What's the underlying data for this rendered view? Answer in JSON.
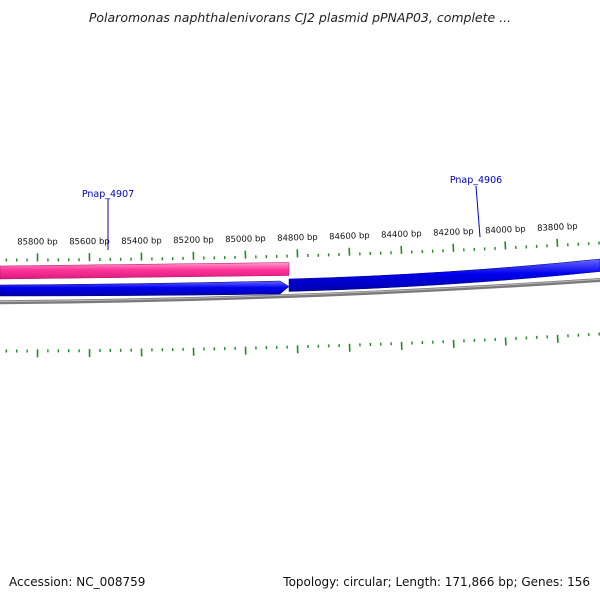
{
  "title": "Polaromonas naphthalenivorans CJ2 plasmid pPNAP03, complete ...",
  "ruler": {
    "labels": [
      "85800 bp",
      "85600 bp",
      "85400 bp",
      "85200 bp",
      "85000 bp",
      "84800 bp",
      "84600 bp",
      "84400 bp",
      "84200 bp",
      "84000 bp",
      "83800 bp"
    ],
    "tick_color": "#228b22"
  },
  "genes": [
    {
      "name": "Pnap_4907",
      "strand": "forward",
      "color": "#ff3399"
    },
    {
      "name": "Pnap_4906",
      "strand": "reverse",
      "color": "#0000ee"
    }
  ],
  "backbone_color": "#808080",
  "label_line_color": "#0000cc",
  "footer": {
    "accession": "Accession: NC_008759",
    "summary": "Topology: circular; Length: 171,866 bp; Genes: 156"
  }
}
